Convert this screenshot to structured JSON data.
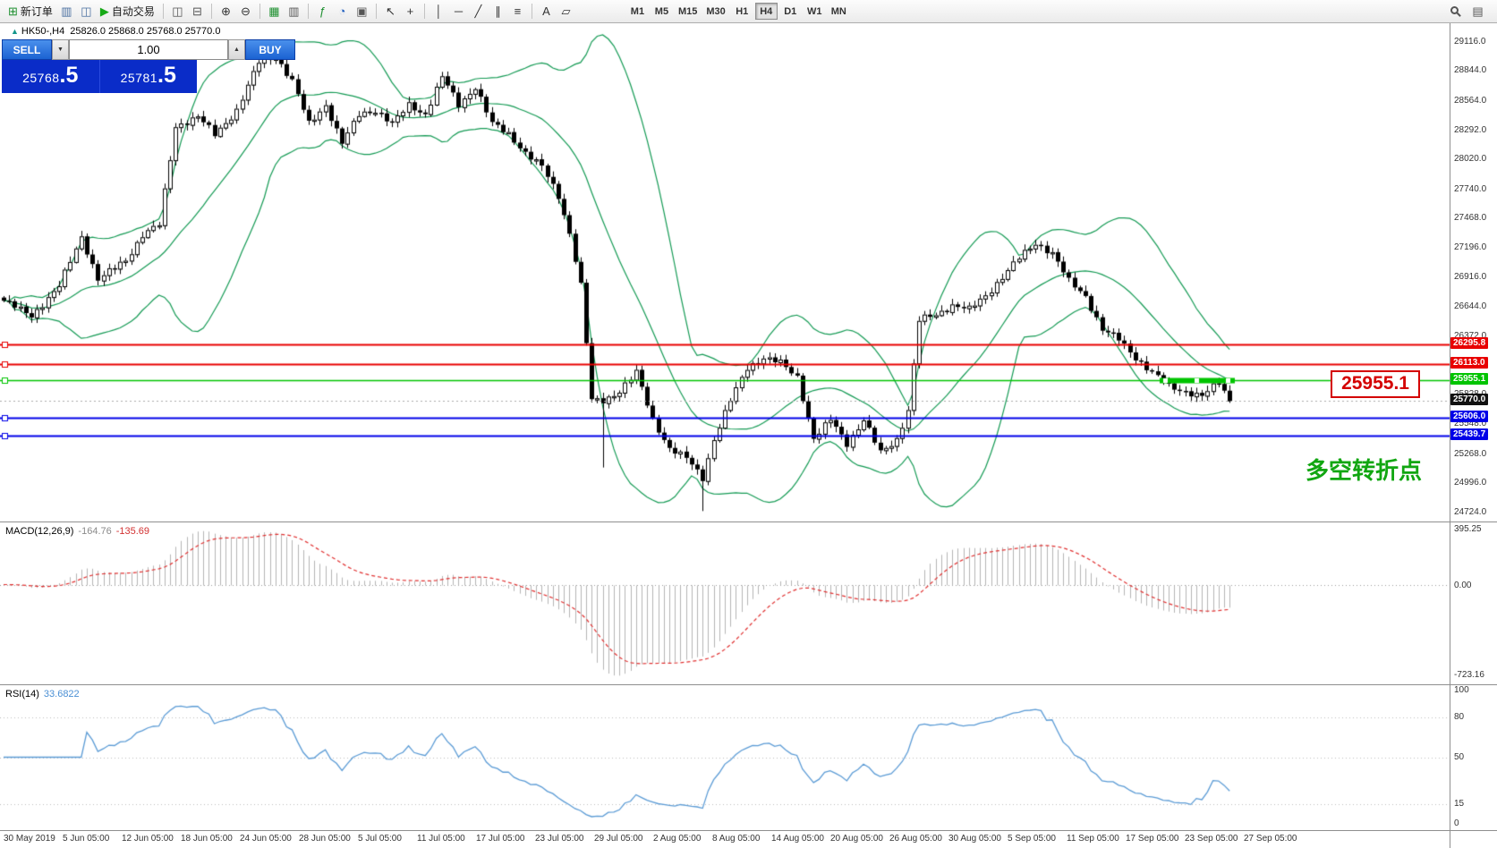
{
  "toolbar": {
    "items": [
      {
        "name": "new-order-icon",
        "glyph": "⊞",
        "color": "#1d8f2f",
        "label": "新订单"
      },
      {
        "name": "charts-icon",
        "glyph": "▥",
        "color": "#4a6fa0"
      },
      {
        "name": "profile-icon",
        "glyph": "◫",
        "color": "#4a6fa0"
      },
      {
        "name": "auto-trading-icon",
        "glyph": "▶",
        "color": "#17a917",
        "label": "自动交易"
      },
      {
        "sep": true
      },
      {
        "name": "tile-windows-icon",
        "glyph": "◫",
        "color": "#555555"
      },
      {
        "name": "cascade-windows-icon",
        "glyph": "⊟",
        "color": "#555555"
      },
      {
        "sep": true
      },
      {
        "name": "zoom-in-icon",
        "glyph": "⊕",
        "color": "#333333"
      },
      {
        "name": "zoom-out-icon",
        "glyph": "⊖",
        "color": "#333333"
      },
      {
        "sep": true
      },
      {
        "name": "grid-icon",
        "glyph": "▦",
        "color": "#1d8f2f"
      },
      {
        "name": "chart-shift-icon",
        "glyph": "▥",
        "color": "#555555"
      },
      {
        "sep": true
      },
      {
        "name": "indicators-icon",
        "glyph": "ƒ",
        "color": "#1d8f2f"
      },
      {
        "name": "periods-icon",
        "glyph": "◔",
        "color": "#1f5fbf"
      },
      {
        "name": "templates-icon",
        "glyph": "▣",
        "color": "#555555"
      },
      {
        "sep": true
      },
      {
        "name": "cursor-icon",
        "glyph": "↖",
        "color": "#333333"
      },
      {
        "name": "crosshair-icon",
        "glyph": "+",
        "color": "#333333"
      },
      {
        "sep": true
      },
      {
        "name": "vertical-line-icon",
        "glyph": "│",
        "color": "#333333"
      },
      {
        "name": "horizontal-line-icon",
        "glyph": "─",
        "color": "#333333"
      },
      {
        "name": "trendline-icon",
        "glyph": "╱",
        "color": "#333333"
      },
      {
        "name": "channel-icon",
        "glyph": "∥",
        "color": "#333333"
      },
      {
        "name": "fibonacci-icon",
        "glyph": "≡",
        "color": "#333333"
      },
      {
        "sep": true
      },
      {
        "name": "text-icon",
        "glyph": "A",
        "color": "#333333"
      },
      {
        "name": "shapes-icon",
        "glyph": "▱",
        "color": "#333333"
      }
    ],
    "timeframes": [
      "M1",
      "M5",
      "M15",
      "M30",
      "H1",
      "H4",
      "D1",
      "W1",
      "MN"
    ],
    "active_timeframe": "H4",
    "right_items": [
      {
        "name": "search-icon",
        "css": "mag"
      },
      {
        "name": "data-window-icon",
        "glyph": "▤",
        "color": "#555555"
      }
    ]
  },
  "symbol_info": {
    "marker": "▲",
    "name": "HK50-,H4",
    "ohlc": "25826.0 25868.0 25768.0 25770.0"
  },
  "trade_panel": {
    "sell_label": "SELL",
    "buy_label": "BUY",
    "volume": "1.00",
    "down_glyph": "▼",
    "up_glyph": "▲",
    "sell_price_big": "25768",
    "sell_price_pips": ".5",
    "buy_price_big": "25781",
    "buy_price_pips": ".5"
  },
  "main_chart": {
    "price_axis_labels": [
      "29116.0",
      "28844.0",
      "28564.0",
      "28292.0",
      "28020.0",
      "27740.0",
      "27468.0",
      "27196.0",
      "26916.0",
      "26644.0",
      "26372.0",
      "26100.0",
      "25828.0",
      "25548.0",
      "25268.0",
      "24996.0",
      "24724.0"
    ],
    "hlines": [
      {
        "price": 26295.8,
        "label": "26295.8",
        "color": "#e80000",
        "width": 2
      },
      {
        "price": 26113.0,
        "label": "26113.0",
        "color": "#e80000",
        "width": 2
      },
      {
        "price": 25955.1,
        "label": "25955.1",
        "color": "#00c400",
        "width": 1.4,
        "highlight_segment": true
      },
      {
        "price": 25606.0,
        "label": "25606.0",
        "color": "#0000e8",
        "width": 2
      },
      {
        "price": 25439.7,
        "label": "25439.7",
        "color": "#0000e8",
        "width": 2
      }
    ],
    "current_price": {
      "value": 25770.0,
      "label": "25770.0",
      "tag_color": "#111111"
    },
    "callout_label": "25955.1",
    "annotation_label": "多空转折点"
  },
  "macd_panel": {
    "name": "MACD(12,26,9)",
    "main_value": "-164.76",
    "signal_value": "-135.69",
    "axis_labels": [
      "395.25",
      "0.00",
      "-723.16"
    ]
  },
  "rsi_panel": {
    "name": "RSI(14)",
    "value": "33.6822",
    "axis_labels": [
      "100",
      "80",
      "50",
      "15",
      "0"
    ],
    "levels": [
      80,
      50,
      15
    ]
  },
  "time_axis": {
    "labels": [
      "30 May 2019",
      "5 Jun 05:00",
      "12 Jun 05:00",
      "18 Jun 05:00",
      "24 Jun 05:00",
      "28 Jun 05:00",
      "5 Jul 05:00",
      "11 Jul 05:00",
      "17 Jul 05:00",
      "23 Jul 05:00",
      "29 Jul 05:00",
      "2 Aug 05:00",
      "8 Aug 05:00",
      "14 Aug 05:00",
      "20 Aug 05:00",
      "26 Aug 05:00",
      "30 Aug 05:00",
      "5 Sep 05:00",
      "11 Sep 05:00",
      "17 Sep 05:00",
      "23 Sep 05:00",
      "27 Sep 05:00"
    ]
  },
  "chart_data": {
    "type": "candlestick",
    "symbol": "HK50-",
    "timeframe": "H4",
    "candle_count": 222,
    "price_axis_top": 29290,
    "price_axis_bottom": 24640,
    "close_waypoints": [
      [
        0,
        26700
      ],
      [
        5,
        26560
      ],
      [
        10,
        26840
      ],
      [
        14,
        27300
      ],
      [
        17,
        26900
      ],
      [
        22,
        27080
      ],
      [
        25,
        27320
      ],
      [
        28,
        27410
      ],
      [
        31,
        28330
      ],
      [
        35,
        28420
      ],
      [
        38,
        28250
      ],
      [
        42,
        28480
      ],
      [
        46,
        28930
      ],
      [
        49,
        28980
      ],
      [
        52,
        28750
      ],
      [
        55,
        28350
      ],
      [
        58,
        28530
      ],
      [
        61,
        28170
      ],
      [
        64,
        28440
      ],
      [
        67,
        28480
      ],
      [
        70,
        28350
      ],
      [
        73,
        28530
      ],
      [
        76,
        28440
      ],
      [
        79,
        28790
      ],
      [
        82,
        28530
      ],
      [
        85,
        28700
      ],
      [
        88,
        28350
      ],
      [
        91,
        28260
      ],
      [
        94,
        28080
      ],
      [
        97,
        27950
      ],
      [
        100,
        27680
      ],
      [
        102,
        27330
      ],
      [
        104,
        26840
      ],
      [
        106,
        25770
      ],
      [
        108,
        25770
      ],
      [
        111,
        25860
      ],
      [
        114,
        26030
      ],
      [
        117,
        25590
      ],
      [
        120,
        25320
      ],
      [
        123,
        25230
      ],
      [
        126,
        25050
      ],
      [
        128,
        25410
      ],
      [
        131,
        25770
      ],
      [
        134,
        26080
      ],
      [
        137,
        26170
      ],
      [
        140,
        26120
      ],
      [
        143,
        25990
      ],
      [
        146,
        25410
      ],
      [
        149,
        25590
      ],
      [
        152,
        25370
      ],
      [
        155,
        25590
      ],
      [
        158,
        25280
      ],
      [
        161,
        25410
      ],
      [
        163,
        25680
      ],
      [
        165,
        26520
      ],
      [
        168,
        26570
      ],
      [
        171,
        26660
      ],
      [
        174,
        26620
      ],
      [
        177,
        26750
      ],
      [
        180,
        26925
      ],
      [
        183,
        27100
      ],
      [
        186,
        27240
      ],
      [
        189,
        27145
      ],
      [
        192,
        26880
      ],
      [
        195,
        26745
      ],
      [
        198,
        26430
      ],
      [
        201,
        26340
      ],
      [
        204,
        26170
      ],
      [
        207,
        26030
      ],
      [
        210,
        25900
      ],
      [
        213,
        25855
      ],
      [
        216,
        25810
      ],
      [
        219,
        25940
      ],
      [
        221,
        25770
      ]
    ],
    "long_lower_wicks": [
      [
        108,
        600
      ],
      [
        126,
        280
      ]
    ],
    "indicators": {
      "bollinger": {
        "period": 20,
        "deviation": 2,
        "color": "#149a54"
      },
      "macd": {
        "fast": 12,
        "slow": 26,
        "signal": 9,
        "histogram_color": "#b4b4b4",
        "signal_color": "#e03030"
      },
      "rsi": {
        "period": 14,
        "color": "#5b9bd5"
      }
    }
  }
}
